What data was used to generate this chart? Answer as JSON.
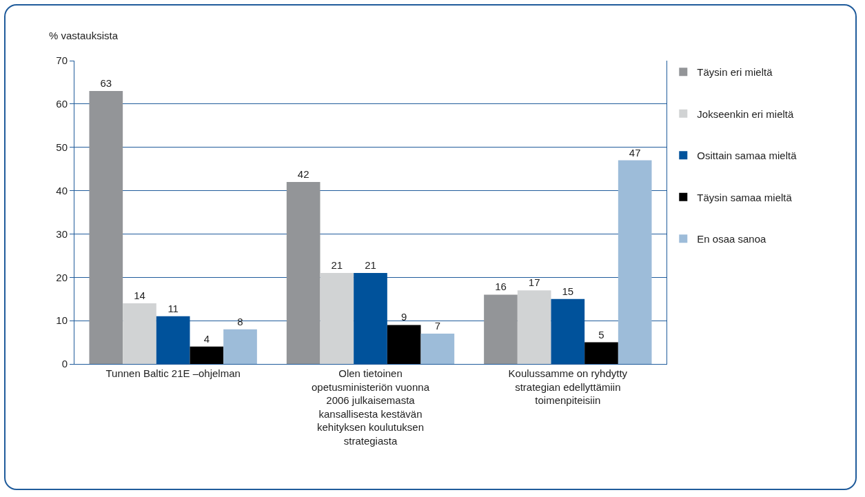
{
  "chart_data": {
    "type": "bar",
    "ylabel": "% vastauksista",
    "categories": [
      "Tunnen Baltic 21E –ohjelman",
      "Olen tietoinen opetusministeriön vuonna 2006 julkaisemasta kansallisesta kestävän kehityksen koulutuksen strategiasta",
      "Koulussamme on ryhdytty strategian edellyttämiin toimenpiteisiin"
    ],
    "series": [
      {
        "name": "Täysin eri mieltä",
        "color": "#939598",
        "values": [
          63,
          42,
          16
        ]
      },
      {
        "name": "Jokseenkin eri mieltä",
        "color": "#d1d3d4",
        "values": [
          14,
          21,
          17
        ]
      },
      {
        "name": "Osittain samaa mieltä",
        "color": "#00529b",
        "values": [
          11,
          21,
          15
        ]
      },
      {
        "name": "Täysin samaa mieltä",
        "color": "#000000",
        "values": [
          4,
          9,
          5
        ]
      },
      {
        "name": "En osaa sanoa",
        "color": "#9dbcd9",
        "values": [
          8,
          7,
          47
        ]
      }
    ],
    "ylim": [
      0,
      70
    ],
    "yticks": [
      0,
      10,
      20,
      30,
      40,
      50,
      60,
      70
    ],
    "grid": "y",
    "legend": "right",
    "data_labels": true
  }
}
